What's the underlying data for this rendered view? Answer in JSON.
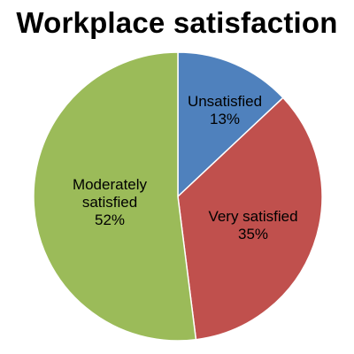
{
  "chart_data": {
    "type": "pie",
    "title": "Workplace satisfaction",
    "start_angle_deg": 0,
    "direction": "clockwise",
    "legend": "none",
    "slices": [
      {
        "label": "Unsatisfied",
        "value": 13,
        "value_label": "13%",
        "color": "#4f81bd"
      },
      {
        "label": "Very satisfied",
        "value": 35,
        "value_label": "35%",
        "color": "#c0504d"
      },
      {
        "label": "Moderately satisfied",
        "value": 52,
        "value_label": "52%",
        "color": "#9bbb59"
      }
    ]
  }
}
